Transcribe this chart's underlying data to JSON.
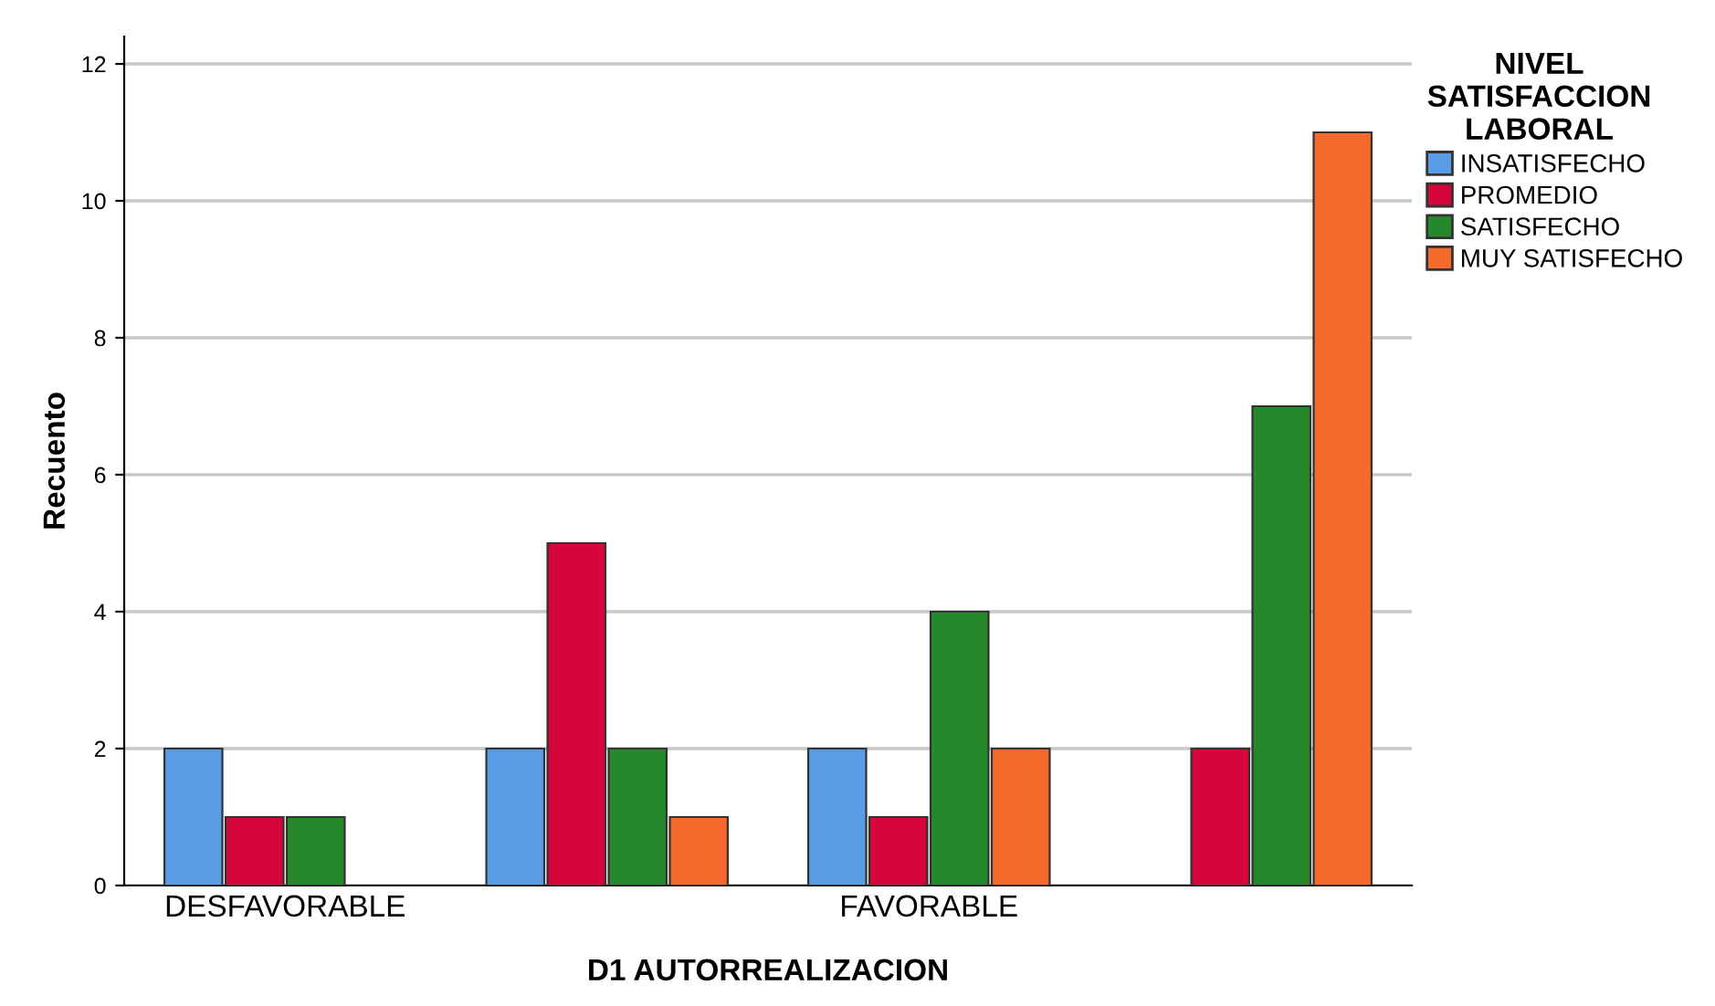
{
  "chart_data": {
    "type": "bar",
    "xlabel": "D1 AUTORREALIZACION",
    "ylabel": "Recuento",
    "legend_title": "NIVEL\nSATISFACCION\nLABORAL",
    "categories": [
      "DESFAVORABLE",
      null,
      "FAVORABLE",
      null
    ],
    "series": [
      {
        "name": "INSATISFECHO",
        "color": "#5a9be6",
        "values": [
          2,
          2,
          2,
          null
        ]
      },
      {
        "name": "PROMEDIO",
        "color": "#d7063a",
        "values": [
          1,
          5,
          1,
          2
        ]
      },
      {
        "name": "SATISFECHO",
        "color": "#26872b",
        "values": [
          1,
          2,
          4,
          7
        ]
      },
      {
        "name": "MUY SATISFECHO",
        "color": "#f36a2c",
        "values": [
          null,
          1,
          2,
          11
        ]
      }
    ],
    "ylim": [
      0,
      12.4
    ],
    "yticks": [
      0,
      2,
      4,
      6,
      8,
      10,
      12
    ],
    "grid": "y",
    "legend": "right"
  }
}
